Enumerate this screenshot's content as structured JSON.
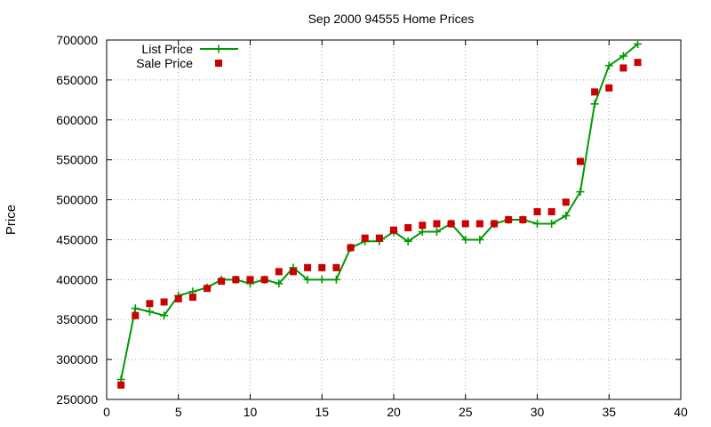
{
  "chart_data": {
    "type": "line",
    "title": "Sep 2000 94555 Home Prices",
    "xlabel": "",
    "ylabel": "Price",
    "xlim": [
      0,
      40
    ],
    "ylim": [
      250000,
      700000
    ],
    "x_ticks": [
      0,
      5,
      10,
      15,
      20,
      25,
      30,
      35,
      40
    ],
    "y_ticks": [
      250000,
      300000,
      350000,
      400000,
      450000,
      500000,
      550000,
      600000,
      650000,
      700000
    ],
    "grid": true,
    "legend_position": "top-left",
    "series": [
      {
        "name": "List Price",
        "style": "line-plus",
        "color": "#009900",
        "x": [
          1,
          2,
          3,
          4,
          5,
          6,
          7,
          8,
          9,
          10,
          11,
          12,
          13,
          14,
          15,
          16,
          17,
          18,
          19,
          20,
          21,
          22,
          23,
          24,
          25,
          26,
          27,
          28,
          29,
          30,
          31,
          32,
          33,
          34,
          35,
          36,
          37
        ],
        "values": [
          275000,
          364000,
          360000,
          355000,
          380000,
          385000,
          390000,
          400000,
          400000,
          395000,
          400000,
          395000,
          415000,
          400000,
          400000,
          400000,
          440000,
          448000,
          448000,
          460000,
          448000,
          460000,
          460000,
          470000,
          450000,
          450000,
          470000,
          475000,
          475000,
          470000,
          470000,
          480000,
          510000,
          620000,
          668000,
          680000,
          695000
        ]
      },
      {
        "name": "Sale Price",
        "style": "square-points",
        "color": "#cc0000",
        "x": [
          1,
          2,
          3,
          4,
          5,
          6,
          7,
          8,
          9,
          10,
          11,
          12,
          13,
          14,
          15,
          16,
          17,
          18,
          19,
          20,
          21,
          22,
          23,
          24,
          25,
          26,
          27,
          28,
          29,
          30,
          31,
          32,
          33,
          34,
          35,
          36,
          37
        ],
        "values": [
          268000,
          355000,
          370000,
          372000,
          376000,
          378000,
          389000,
          398000,
          400000,
          400000,
          400000,
          410000,
          410000,
          415000,
          415000,
          415000,
          440000,
          452000,
          452000,
          462000,
          465000,
          468000,
          470000,
          470000,
          470000,
          470000,
          470000,
          475000,
          475000,
          485000,
          485000,
          497000,
          548000,
          635000,
          640000,
          665000,
          672000
        ]
      }
    ]
  }
}
